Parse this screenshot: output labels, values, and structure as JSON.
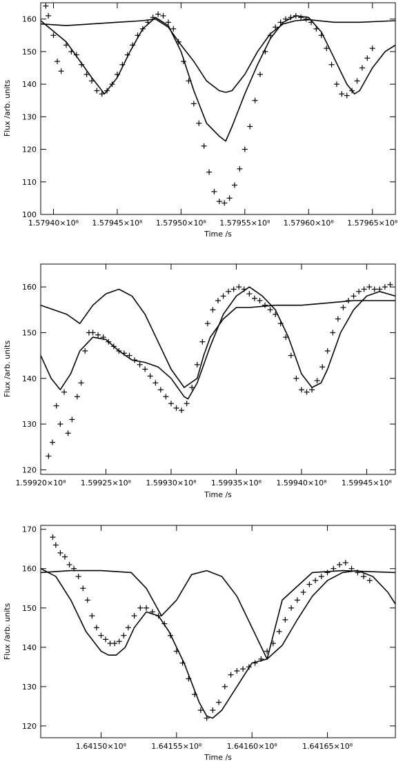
{
  "chart_data": [
    {
      "type": "line",
      "xlabel": "Time /s",
      "ylabel": "Flux /arb. units",
      "xlim": [
        157939000,
        157966800
      ],
      "ylim": [
        100,
        165
      ],
      "x_ticks": [
        {
          "value": 157940000,
          "label": "1.57940×10⁸"
        },
        {
          "value": 157945000,
          "label": "1.57945×10⁸"
        },
        {
          "value": 157950000,
          "label": "1.57950×10⁸"
        },
        {
          "value": 157955000,
          "label": "1.57955×10⁸"
        },
        {
          "value": 157960000,
          "label": "1.57960×10⁸"
        },
        {
          "value": 157965000,
          "label": "1.57965×10⁸"
        }
      ],
      "y_ticks": [
        100,
        110,
        120,
        130,
        140,
        150,
        160
      ],
      "series": [
        {
          "style": "line",
          "x": [
            157939000,
            157941000,
            157943000,
            157944000,
            157945000,
            157946000,
            157947000,
            157948000,
            157949000,
            157950000,
            157951000,
            157952000,
            157953000,
            157953500,
            157954000,
            157955000,
            157956000,
            157957000,
            157958000,
            157959000,
            157960000,
            157961000,
            157962000,
            157963000,
            157963600,
            157964000,
            157965000,
            157966000,
            157966800
          ],
          "y": [
            159.5,
            153,
            142,
            137,
            142,
            150,
            157,
            160.5,
            158,
            150,
            138,
            128,
            124,
            122.5,
            127,
            137,
            146,
            154,
            159,
            161,
            160.5,
            156,
            148,
            140,
            137,
            138,
            145,
            150,
            152
          ]
        },
        {
          "style": "line",
          "x": [
            157939000,
            157941000,
            157943000,
            157945000,
            157947000,
            157948000,
            157949000,
            157950000,
            157951000,
            157952000,
            157953000,
            157953500,
            157954000,
            157955000,
            157956000,
            157957000,
            157958000,
            157959000,
            157960000,
            157962000,
            157964000,
            157966800
          ],
          "y": [
            158.5,
            158,
            158.5,
            159,
            159.5,
            160,
            157.5,
            152,
            147,
            141,
            138,
            137.5,
            138,
            143,
            150,
            155.5,
            158.5,
            159.5,
            159.8,
            159,
            159,
            159.5
          ]
        },
        {
          "style": "markers",
          "x": [
            157939400,
            157939600,
            157940000,
            157940300,
            157940600,
            157941000,
            157941400,
            157941800,
            157942200,
            157942600,
            157943000,
            157943400,
            157943800,
            157944200,
            157944600,
            157945000,
            157945400,
            157945800,
            157946200,
            157946600,
            157947000,
            157947400,
            157947800,
            157948200,
            157948600,
            157949000,
            157949400,
            157949800,
            157950200,
            157950600,
            157951000,
            157951400,
            157951800,
            157952200,
            157952600,
            157953000,
            157953400,
            157953800,
            157954200,
            157954600,
            157955000,
            157955400,
            157955800,
            157956200,
            157956600,
            157957000,
            157957400,
            157957800,
            157958200,
            157958600,
            157959000,
            157959400,
            157959800,
            157960200,
            157960600,
            157961000,
            157961400,
            157961800,
            157962200,
            157962600,
            157963000,
            157963400,
            157963800,
            157964200,
            157964600,
            157965000
          ],
          "y": [
            164,
            161,
            155,
            147,
            144,
            152,
            150,
            149,
            146,
            143,
            141,
            138,
            137,
            138,
            140,
            143,
            146,
            149,
            152,
            155,
            157,
            159,
            160.5,
            161.5,
            161,
            159,
            157,
            153,
            147,
            141,
            134,
            128,
            121,
            113,
            107,
            104,
            103.5,
            105,
            109,
            114,
            120,
            127,
            135,
            143,
            150,
            155,
            157.5,
            159,
            160,
            160.5,
            161,
            160.5,
            160,
            159,
            157,
            155,
            151,
            146,
            140,
            137,
            136.5,
            138,
            141,
            145,
            148,
            151
          ]
        }
      ]
    },
    {
      "type": "line",
      "xlabel": "Time /s",
      "ylabel": "Flux /arb. units",
      "xlim": [
        159920000,
        159947200
      ],
      "ylim": [
        119,
        165
      ],
      "x_ticks": [
        {
          "value": 159920000,
          "label": "1.59920×10⁸"
        },
        {
          "value": 159925000,
          "label": "1.59925×10⁸"
        },
        {
          "value": 159930000,
          "label": "1.59930×10⁸"
        },
        {
          "value": 159935000,
          "label": "1.59935×10⁸"
        },
        {
          "value": 159940000,
          "label": "1.59940×10⁸"
        },
        {
          "value": 159945000,
          "label": "1.59945×10⁸"
        }
      ],
      "y_ticks": [
        120,
        130,
        140,
        150,
        160
      ],
      "series": [
        {
          "style": "line",
          "x": [
            159920000,
            159920800,
            159921500,
            159922300,
            159923000,
            159924000,
            159925000,
            159926000,
            159927000,
            159928000,
            159929000,
            159930000,
            159931000,
            159931300,
            159932000,
            159933000,
            159934000,
            159935000,
            159936000,
            159937000,
            159938000,
            159939000,
            159940000,
            159940800,
            159941500,
            159942000,
            159943000,
            159944000,
            159945000,
            159946000,
            159947200
          ],
          "y": [
            145,
            140,
            137.5,
            141,
            146,
            149,
            148.5,
            146,
            144,
            143.5,
            142.5,
            140,
            136,
            135.5,
            139,
            147,
            154,
            158,
            160,
            158,
            155,
            149,
            141,
            138,
            139,
            142,
            150,
            155,
            158,
            159,
            158
          ]
        },
        {
          "style": "line",
          "x": [
            159920000,
            159922000,
            159923000,
            159924000,
            159925000,
            159926000,
            159927000,
            159928000,
            159929000,
            159930000,
            159931000,
            159932000,
            159932500,
            159933000,
            159934000,
            159935000,
            159936000,
            159938000,
            159940000,
            159942000,
            159944000,
            159947200
          ],
          "y": [
            156,
            154,
            152,
            156,
            158.5,
            159.5,
            158,
            154,
            148,
            142,
            138,
            140,
            145,
            149,
            153,
            155.5,
            155.5,
            156,
            156,
            156.5,
            157,
            157
          ]
        },
        {
          "style": "markers",
          "x": [
            159920600,
            159920900,
            159921200,
            159921500,
            159921800,
            159922100,
            159922400,
            159922800,
            159923100,
            159923400,
            159923700,
            159924000,
            159924400,
            159924800,
            159925200,
            159925600,
            159926000,
            159926400,
            159926800,
            159927200,
            159927600,
            159928000,
            159928400,
            159928800,
            159929200,
            159929600,
            159930000,
            159930400,
            159930800,
            159931200,
            159931600,
            159932000,
            159932400,
            159932800,
            159933200,
            159933600,
            159934000,
            159934400,
            159934800,
            159935200,
            159935600,
            159936000,
            159936400,
            159936800,
            159937200,
            159937600,
            159938000,
            159938400,
            159938800,
            159939200,
            159939600,
            159940000,
            159940400,
            159940800,
            159941200,
            159941600,
            159942000,
            159942400,
            159942800,
            159943200,
            159943600,
            159944000,
            159944400,
            159944800,
            159945200,
            159945600,
            159946000,
            159946400,
            159946800
          ],
          "y": [
            123,
            126,
            134,
            130,
            137,
            128,
            131,
            136,
            139,
            146,
            150,
            150,
            149.5,
            149,
            148,
            147,
            146,
            145.5,
            145,
            144,
            143,
            142,
            140.5,
            139,
            137.5,
            136,
            134.5,
            133.5,
            133,
            134.5,
            138,
            143,
            148,
            152,
            155,
            157,
            158,
            159,
            159.5,
            160,
            159.5,
            158.5,
            157.5,
            157,
            156,
            155,
            154,
            152,
            149,
            145,
            140,
            137.5,
            137,
            137.5,
            139.5,
            142.5,
            146,
            150,
            153,
            155.5,
            157,
            158,
            159,
            159.5,
            160,
            159.5,
            159.5,
            160,
            160.5
          ]
        }
      ]
    },
    {
      "type": "line",
      "xlabel": "Time /s",
      "ylabel": "Flux /arb. units",
      "xlim": [
        164146000,
        164169500
      ],
      "ylim": [
        117,
        171
      ],
      "x_ticks": [
        {
          "value": 164150000,
          "label": "1.64150×10⁸"
        },
        {
          "value": 164155000,
          "label": "1.64155×10⁸"
        },
        {
          "value": 164160000,
          "label": "1.64160×10⁸"
        },
        {
          "value": 164165000,
          "label": "1.64165×10⁸"
        }
      ],
      "y_ticks": [
        120,
        130,
        140,
        150,
        160,
        170
      ],
      "series": [
        {
          "style": "line",
          "x": [
            164146000,
            164147000,
            164148000,
            164149000,
            164150000,
            164150500,
            164151000,
            164151600,
            164152200,
            164153000,
            164153800,
            164154500,
            164155500,
            164156500,
            164157000,
            164157400,
            164158000,
            164159000,
            164160000,
            164161000,
            164162000,
            164163000,
            164164000,
            164165000,
            164166000,
            164167000,
            164168000,
            164169000,
            164169500
          ],
          "y": [
            160,
            158,
            152,
            144,
            139,
            138,
            138,
            140,
            145,
            149,
            148,
            144,
            136,
            126,
            122.5,
            122,
            124,
            130,
            136,
            137,
            140.5,
            147,
            153,
            157,
            159,
            159.5,
            158,
            154,
            151
          ]
        },
        {
          "style": "line",
          "x": [
            164146000,
            164148000,
            164150000,
            164152000,
            164153000,
            164154000,
            164155000,
            164156000,
            164157000,
            164158000,
            164159000,
            164160000,
            164161000,
            164162000,
            164164000,
            164166000,
            164169500
          ],
          "y": [
            159,
            159.5,
            159.5,
            159,
            155,
            148,
            152,
            158.5,
            159.5,
            158,
            153,
            145,
            137,
            152,
            159,
            159.5,
            159
          ]
        },
        {
          "style": "markers",
          "x": [
            164146800,
            164147000,
            164147300,
            164147600,
            164147900,
            164148200,
            164148500,
            164148800,
            164149100,
            164149400,
            164149700,
            164150000,
            164150300,
            164150600,
            164150900,
            164151200,
            164151500,
            164151800,
            164152200,
            164152600,
            164153000,
            164153400,
            164153800,
            164154200,
            164154600,
            164155000,
            164155400,
            164155800,
            164156200,
            164156600,
            164157000,
            164157400,
            164157800,
            164158200,
            164158600,
            164159000,
            164159400,
            164159800,
            164160200,
            164160600,
            164161000,
            164161400,
            164161800,
            164162200,
            164162600,
            164163000,
            164163400,
            164163800,
            164164200,
            164164600,
            164165000,
            164165400,
            164165800,
            164166200,
            164166600,
            164167000,
            164167400,
            164167800
          ],
          "y": [
            168,
            166,
            164,
            163,
            161,
            160,
            158,
            155,
            152,
            148,
            145,
            143,
            142,
            141,
            141,
            141.5,
            143,
            145,
            148,
            150,
            150,
            149,
            148,
            146,
            143,
            139,
            136,
            132,
            128,
            124,
            122,
            124,
            126,
            130,
            133,
            134,
            134.5,
            135,
            136,
            137,
            139,
            141,
            144,
            147,
            150,
            152,
            154,
            156,
            157,
            158,
            159,
            160,
            161,
            161.5,
            160,
            159,
            158,
            157
          ]
        }
      ]
    }
  ]
}
